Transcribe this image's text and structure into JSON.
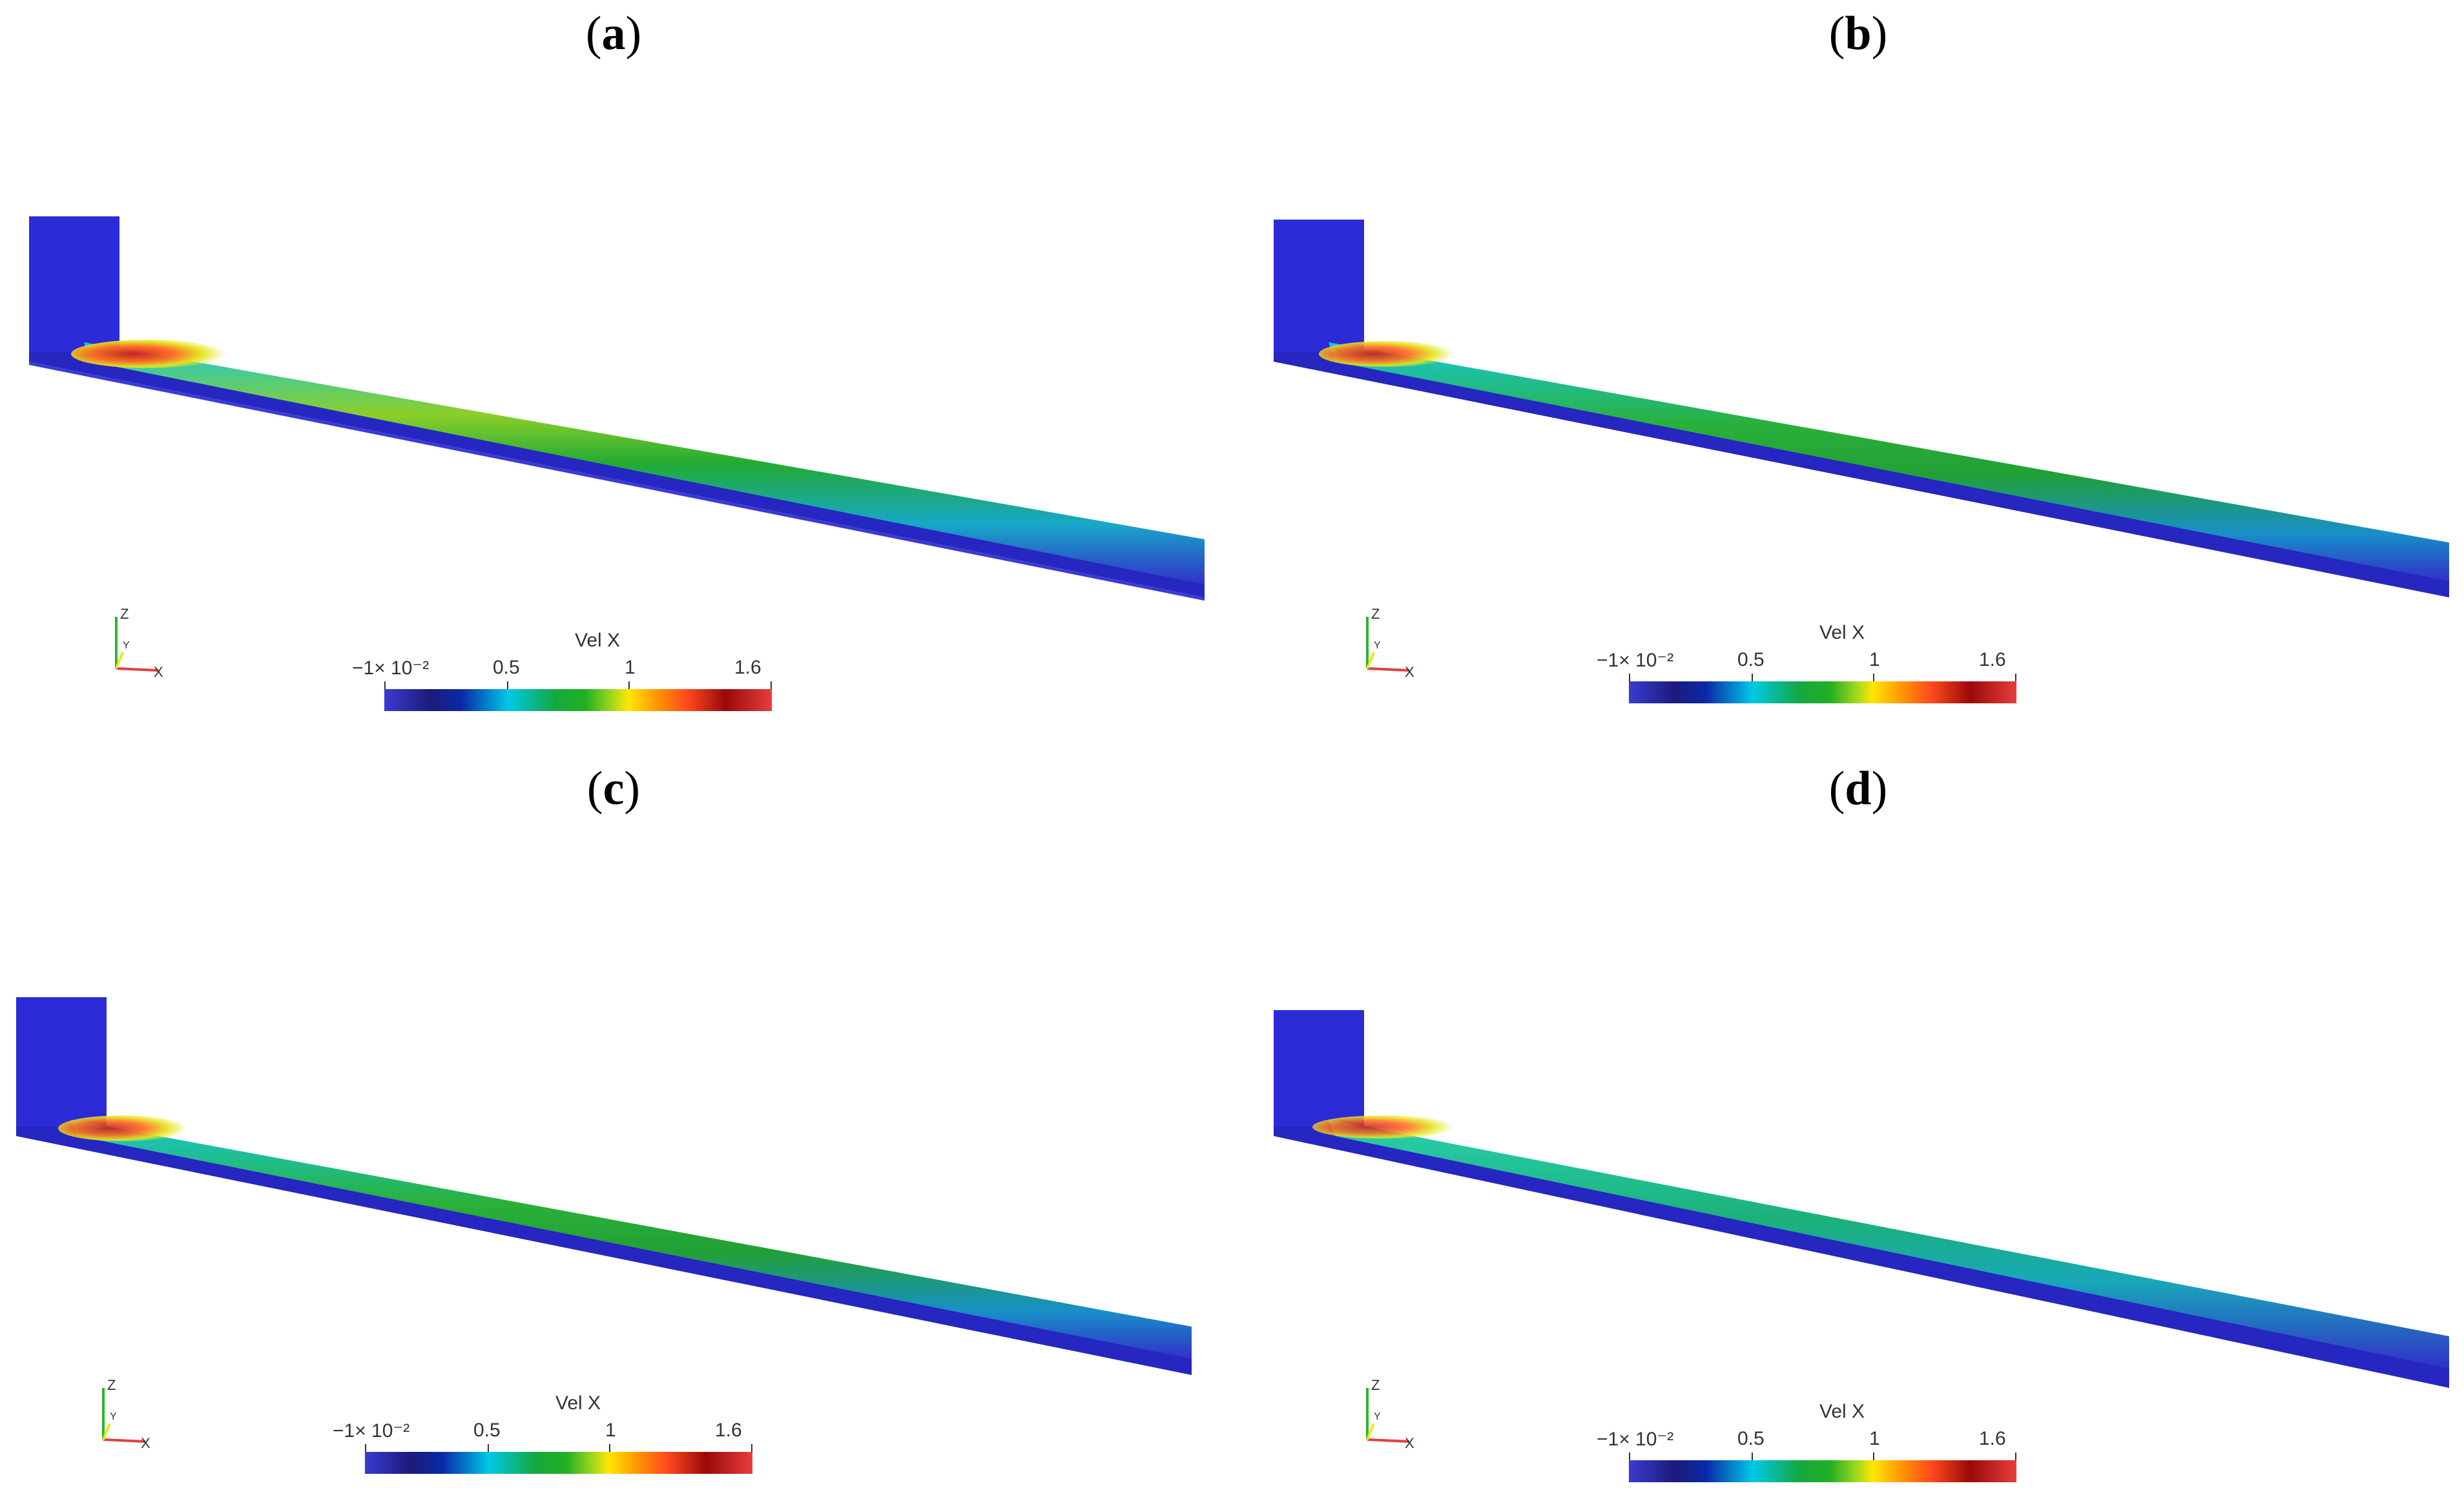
{
  "panels": [
    {
      "label": "a",
      "colorbar": {
        "title": "Vel X",
        "ticks": [
          "−1× 10⁻²",
          "0.5",
          "1",
          "1.6"
        ]
      },
      "axes": {
        "z": "Z",
        "y": "Y",
        "x": "X"
      }
    },
    {
      "label": "b",
      "colorbar": {
        "title": "Vel X",
        "ticks": [
          "−1× 10⁻²",
          "0.5",
          "1",
          "1.6"
        ]
      },
      "axes": {
        "z": "Z",
        "y": "Y",
        "x": "X"
      }
    },
    {
      "label": "c",
      "colorbar": {
        "title": "Vel X",
        "ticks": [
          "−1× 10⁻²",
          "0.5",
          "1",
          "1.6"
        ]
      },
      "axes": {
        "z": "Z",
        "y": "Y",
        "x": "X"
      }
    },
    {
      "label": "d",
      "colorbar": {
        "title": "Vel X",
        "ticks": [
          "−1× 10⁻²",
          "0.5",
          "1",
          "1.6"
        ]
      },
      "axes": {
        "z": "Z",
        "y": "Y",
        "x": "X"
      }
    }
  ],
  "colors": {
    "low": "#2b2bc8",
    "mid": "#1fae3a",
    "high": "#c81e1e",
    "accent_yellow": "#e6e61e",
    "accent_cyan": "#18c8d8"
  }
}
